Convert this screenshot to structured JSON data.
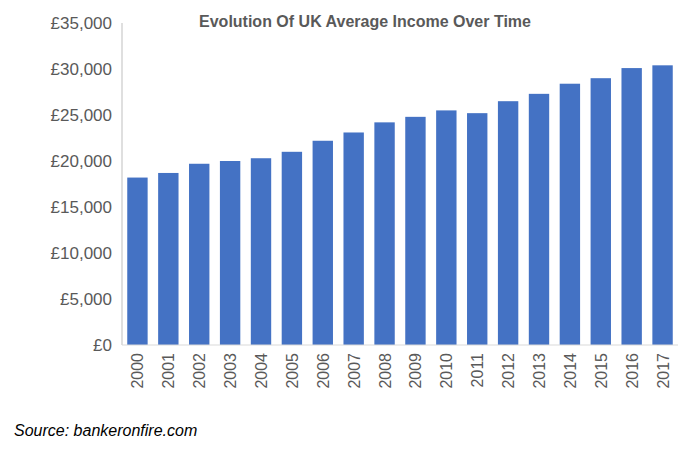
{
  "chart_data": {
    "type": "bar",
    "title": "Evolution Of UK Average Income Over Time",
    "categories": [
      "2000",
      "2001",
      "2002",
      "2003",
      "2004",
      "2005",
      "2006",
      "2007",
      "2008",
      "2009",
      "2010",
      "2011",
      "2012",
      "2013",
      "2014",
      "2015",
      "2016",
      "2017"
    ],
    "values": [
      18200,
      18700,
      19700,
      20000,
      20300,
      21000,
      22200,
      23100,
      24200,
      24800,
      25500,
      25200,
      26500,
      27300,
      28400,
      29000,
      30100,
      30400
    ],
    "color": "#4472c4",
    "ylim": [
      0,
      35000
    ],
    "yticks": [
      {
        "value": 0,
        "label": "£0"
      },
      {
        "value": 5000,
        "label": "£5,000"
      },
      {
        "value": 10000,
        "label": "£10,000"
      },
      {
        "value": 15000,
        "label": "£15,000"
      },
      {
        "value": 20000,
        "label": "£20,000"
      },
      {
        "value": 25000,
        "label": "£25,000"
      },
      {
        "value": 30000,
        "label": "£30,000"
      },
      {
        "value": 35000,
        "label": "£35,000"
      }
    ],
    "grid": false,
    "annotations": [
      "Source: bankeronfire.com"
    ]
  }
}
